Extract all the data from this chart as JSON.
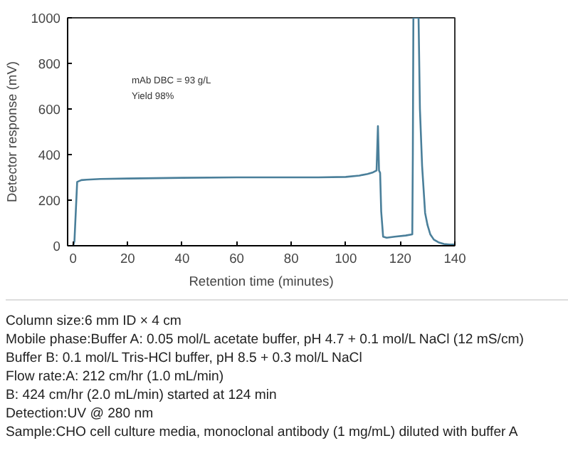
{
  "chart_data": {
    "type": "line",
    "xlabel": "Retention time (minutes)",
    "ylabel": "Detector response (mV)",
    "x": [
      0,
      0.5,
      1,
      1.5,
      3,
      5,
      10,
      20,
      40,
      60,
      80,
      90,
      100,
      105,
      108,
      110,
      111.3,
      111.8,
      112.2,
      112.6,
      113,
      113.7,
      115,
      118,
      122,
      124.4,
      124.6,
      124.8,
      125.2,
      126.4,
      126.7,
      127.2,
      128,
      129.1,
      130,
      131,
      132.3,
      134,
      136,
      138,
      140
    ],
    "series": [
      {
        "color": "#4a7f9a",
        "values": [
          0,
          20,
          150,
          280,
          288,
          290,
          293,
          295,
          298,
          300,
          300,
          300,
          302,
          308,
          315,
          322,
          330,
          525,
          330,
          320,
          150,
          40,
          35,
          40,
          45,
          50,
          400,
          1000,
          1000,
          1000,
          1000,
          600,
          350,
          144,
          90,
          50,
          27,
          15,
          8,
          5,
          5
        ]
      }
    ],
    "xlim": [
      -2,
      140
    ],
    "ylim": [
      0,
      1000
    ],
    "xticks": [
      0,
      20,
      40,
      60,
      80,
      100,
      120,
      140
    ],
    "yticks": [
      0,
      200,
      400,
      600,
      800,
      1000
    ],
    "grid": false,
    "marker": "none",
    "line_style": "solid",
    "annotations": [
      "mAb DBC = 93 g/L",
      "Yield 98%",
      "Column size:6 mm ID × 4 cm",
      "Mobile phase:Buffer A: 0.05 mol/L acetate buffer, pH 4.7 + 0.1 mol/L NaCl (12 mS/cm)",
      "Buffer B: 0.1 mol/L Tris-HCl buffer, pH 8.5 + 0.3 mol/L NaCl",
      "Flow rate:A: 212 cm/hr (1.0 mL/min)",
      "B: 424 cm/hr (2.0 mL/min) started at 124 min",
      "Detection:UV @ 280 nm",
      "Sample:CHO cell culture media, monoclonal antibody (1 mg/mL) diluted with buffer A"
    ]
  }
}
